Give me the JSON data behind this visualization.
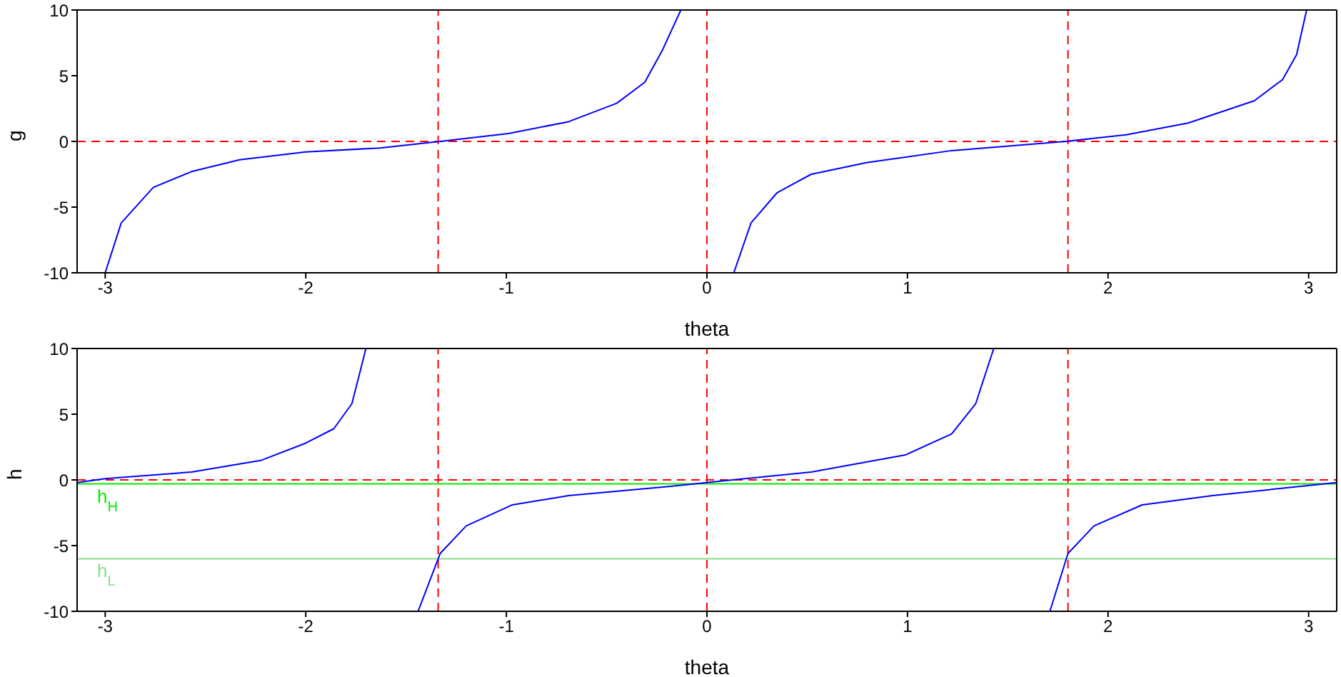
{
  "chart_data": [
    {
      "type": "line",
      "xlabel": "theta",
      "ylabel": "g",
      "xlim": [
        -3.14,
        3.14
      ],
      "ylim": [
        -10,
        10
      ],
      "xticks": [
        -3,
        -2,
        -1,
        0,
        1,
        2,
        3
      ],
      "yticks": [
        -10,
        -5,
        0,
        5,
        10
      ],
      "line_style": "solid",
      "marker": "none",
      "series": [
        {
          "color": "#0000ff",
          "x": [
            -3.0,
            -2.92,
            -2.76,
            -2.57,
            -2.33,
            -2.0,
            -1.63,
            -1.33,
            -0.99,
            -0.69,
            -0.45,
            -0.31,
            -0.22,
            -0.13,
            0.0,
            0.134,
            0.22,
            0.35,
            0.52,
            0.8,
            1.22,
            1.79,
            2.09,
            2.4,
            2.73,
            2.87,
            2.94,
            2.99
          ],
          "values": [
            -10,
            -6.2,
            -3.5,
            -2.3,
            -1.4,
            -0.8,
            -0.5,
            0,
            0.6,
            1.5,
            2.9,
            4.5,
            7.0,
            10,
            null,
            -10,
            -6.2,
            -3.9,
            -2.5,
            -1.6,
            -0.7,
            0,
            0.5,
            1.4,
            3.1,
            4.7,
            6.6,
            10
          ]
        }
      ],
      "ref_lines": [
        {
          "axis": "x",
          "value": -1.34,
          "color": "#ff0000",
          "line_style": "dashed"
        },
        {
          "axis": "x",
          "value": 0,
          "color": "#ff0000",
          "line_style": "dashed"
        },
        {
          "axis": "x",
          "value": 1.8,
          "color": "#ff0000",
          "line_style": "dashed"
        },
        {
          "axis": "y",
          "value": 0,
          "color": "#ff0000",
          "line_style": "dashed"
        }
      ]
    },
    {
      "type": "line",
      "xlabel": "theta",
      "ylabel": "h",
      "xlim": [
        -3.14,
        3.14
      ],
      "ylim": [
        -10,
        10
      ],
      "xticks": [
        -3,
        -2,
        -1,
        0,
        1,
        2,
        3
      ],
      "yticks": [
        -10,
        -5,
        0,
        5,
        10
      ],
      "line_style": "solid",
      "marker": "none",
      "series": [
        {
          "color": "#0000ff",
          "x": [
            -3.14,
            -3.0,
            -2.57,
            -2.22,
            -2.0,
            -1.86,
            -1.77,
            -1.7,
            -1.57,
            -1.44,
            -1.33,
            -1.2,
            -0.97,
            -0.69,
            -0.19,
            0.0,
            0.52,
            0.99,
            1.22,
            1.34,
            1.43,
            1.57,
            1.71,
            1.8,
            1.93,
            2.17,
            2.52,
            3.14
          ],
          "values": [
            -0.2,
            0.1,
            0.6,
            1.5,
            2.8,
            3.9,
            5.8,
            10,
            null,
            -10,
            -5.6,
            -3.5,
            -1.9,
            -1.2,
            -0.5,
            -0.2,
            0.6,
            1.9,
            3.5,
            5.8,
            10,
            null,
            -10,
            -5.6,
            -3.5,
            -1.9,
            -1.2,
            -0.2
          ]
        }
      ],
      "ref_lines": [
        {
          "axis": "x",
          "value": -1.34,
          "color": "#ff0000",
          "line_style": "dashed"
        },
        {
          "axis": "x",
          "value": 0,
          "color": "#ff0000",
          "line_style": "dashed"
        },
        {
          "axis": "x",
          "value": 1.8,
          "color": "#ff0000",
          "line_style": "dashed"
        },
        {
          "axis": "y",
          "value": 0,
          "color": "#ff0000",
          "line_style": "dashed"
        },
        {
          "axis": "y",
          "value": -0.3,
          "color": "#00ee00",
          "line_style": "solid",
          "label": "h$_{H}$"
        },
        {
          "axis": "y",
          "value": -6,
          "color": "#88dd88",
          "line_style": "solid",
          "label": "h$_{L}$"
        }
      ]
    }
  ]
}
